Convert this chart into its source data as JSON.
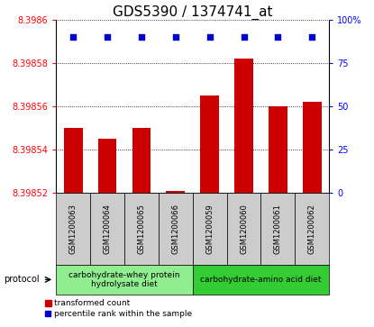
{
  "title": "GDS5390 / 1374741_at",
  "samples": [
    "GSM1200063",
    "GSM1200064",
    "GSM1200065",
    "GSM1200066",
    "GSM1200059",
    "GSM1200060",
    "GSM1200061",
    "GSM1200062"
  ],
  "bar_values": [
    8.39855,
    8.398545,
    8.39855,
    8.398521,
    8.398565,
    8.398582,
    8.39856,
    8.398562
  ],
  "percentile_values": [
    90,
    90,
    90,
    90,
    90,
    90,
    90,
    90
  ],
  "y_min": 8.39852,
  "y_max": 8.3986,
  "y_ticks": [
    8.39852,
    8.39854,
    8.39856,
    8.39858,
    8.3986
  ],
  "y_ticks_labels": [
    "8.39852",
    "8.39854",
    "8.39856",
    "8.39858",
    "8.3986"
  ],
  "y2_ticks": [
    0,
    25,
    50,
    75,
    100
  ],
  "y2_labels": [
    "0",
    "25",
    "50",
    "75",
    "100%"
  ],
  "bar_color": "#cc0000",
  "dot_color": "#0000cc",
  "protocol_groups": [
    {
      "label": "carbohydrate-whey protein\nhydrolysate diet",
      "start": 0,
      "end": 4,
      "color": "#90ee90"
    },
    {
      "label": "carbohydrate-amino acid diet",
      "start": 4,
      "end": 8,
      "color": "#33cc33"
    }
  ],
  "protocol_label": "protocol",
  "legend_items": [
    {
      "color": "#cc0000",
      "label": "transformed count"
    },
    {
      "color": "#0000cc",
      "label": "percentile rank within the sample"
    }
  ],
  "title_fontsize": 11,
  "tick_fontsize": 7,
  "sample_fontsize": 6,
  "protocol_fontsize": 6.5,
  "legend_fontsize": 6.5
}
